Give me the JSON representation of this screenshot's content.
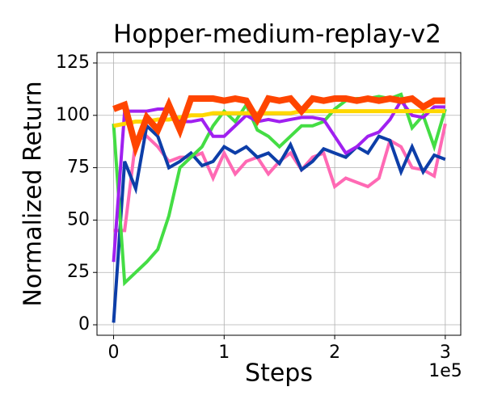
{
  "chart_data": {
    "type": "line",
    "title": "Hopper-medium-replay-v2",
    "x_label": "Steps",
    "y_label": "Normalized Return",
    "x_offset_label": "1e5",
    "x": [
      0,
      10000,
      20000,
      30000,
      40000,
      50000,
      60000,
      70000,
      80000,
      90000,
      100000,
      110000,
      120000,
      130000,
      140000,
      150000,
      160000,
      170000,
      180000,
      190000,
      200000,
      210000,
      220000,
      230000,
      240000,
      250000,
      260000,
      270000,
      280000,
      290000,
      300000
    ],
    "xlim": [
      -15000,
      314000
    ],
    "xticks": [
      {
        "value": 0,
        "label": "0"
      },
      {
        "value": 100000,
        "label": "1"
      },
      {
        "value": 200000,
        "label": "2"
      },
      {
        "value": 300000,
        "label": "3"
      }
    ],
    "ylim": [
      -5,
      130
    ],
    "yticks": [
      0,
      25,
      50,
      75,
      100,
      125
    ],
    "grid": true,
    "series": [
      {
        "color": "#ff69b4",
        "width": 4,
        "values": [
          45,
          45,
          88,
          90,
          85,
          78,
          80,
          80,
          82,
          70,
          82,
          72,
          78,
          80,
          72,
          78,
          82,
          74,
          80,
          82,
          66,
          70,
          68,
          66,
          70,
          88,
          85,
          75,
          74,
          71,
          96
        ]
      },
      {
        "color": "#0d3ea8",
        "width": 4,
        "values": [
          1,
          78,
          65,
          95,
          90,
          75,
          78,
          82,
          76,
          78,
          85,
          82,
          85,
          80,
          82,
          77,
          86,
          74,
          78,
          84,
          82,
          80,
          85,
          82,
          90,
          88,
          73,
          85,
          73,
          81,
          79
        ]
      },
      {
        "color": "#44dd44",
        "width": 4,
        "values": [
          96,
          20,
          25,
          30,
          36,
          52,
          75,
          80,
          85,
          95,
          102,
          97,
          105,
          93,
          90,
          85,
          90,
          95,
          95,
          97,
          103,
          107,
          108,
          108,
          109,
          108,
          110,
          94,
          100,
          85,
          103
        ]
      },
      {
        "color": "#a020f0",
        "width": 4,
        "values": [
          30,
          102,
          102,
          102,
          103,
          103,
          97,
          97,
          98,
          90,
          90,
          95,
          100,
          97,
          98,
          97,
          98,
          99,
          99,
          98,
          90,
          82,
          85,
          90,
          92,
          98,
          107,
          100,
          99,
          104,
          104
        ]
      },
      {
        "color": "#ffd700",
        "width": 5,
        "values": [
          95,
          96,
          97,
          97,
          98,
          98,
          99,
          100,
          100,
          101,
          101,
          101,
          101,
          101,
          101,
          101,
          101,
          102,
          102,
          102,
          102,
          102,
          102,
          102,
          102,
          102,
          102,
          102,
          102,
          102,
          102
        ]
      },
      {
        "color": "#ff4500",
        "width": 8,
        "values": [
          103,
          105,
          85,
          99,
          93,
          105,
          93,
          108,
          108,
          108,
          107,
          108,
          107,
          98,
          108,
          107,
          108,
          102,
          108,
          107,
          108,
          108,
          107,
          108,
          107,
          108,
          107,
          108,
          104,
          107,
          107
        ]
      }
    ]
  }
}
